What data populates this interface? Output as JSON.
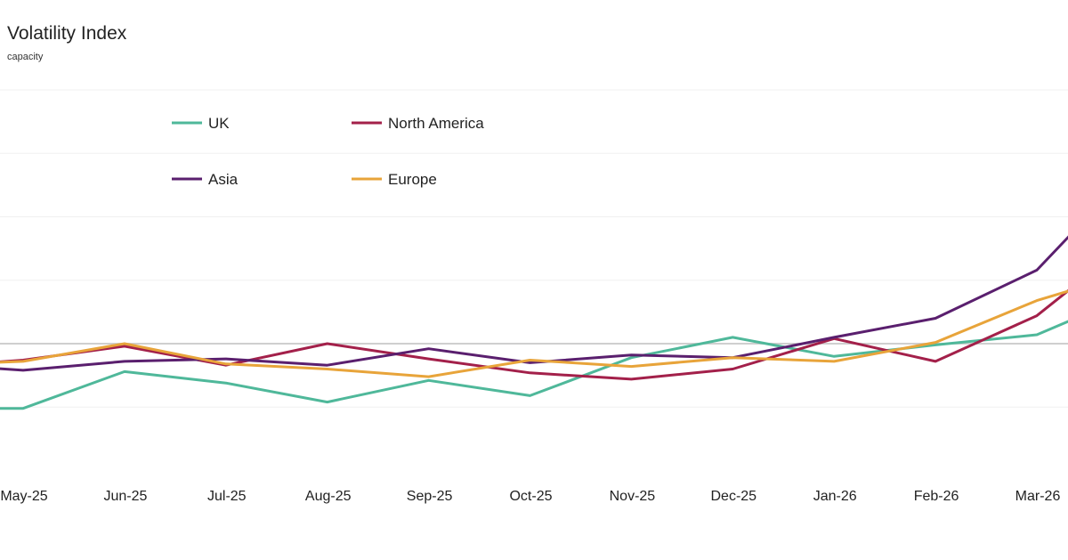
{
  "chart_data": {
    "type": "line",
    "title": "Volatility Index",
    "subtitle": "capacity",
    "categories": [
      "May-25",
      "Jun-25",
      "Jul-25",
      "Aug-25",
      "Sep-25",
      "Oct-25",
      "Nov-25",
      "Dec-25",
      "Jan-26",
      "Feb-26",
      "Mar-26"
    ],
    "series": [
      {
        "name": "UK",
        "color": "#4fb89a",
        "x": [
          -0.35,
          0,
          1,
          2,
          3,
          4,
          5,
          6,
          7,
          8,
          9,
          10,
          10.5
        ],
        "values": [
          -2.55,
          -2.55,
          -1.1,
          -1.55,
          -2.3,
          -1.45,
          -2.05,
          -0.55,
          0.25,
          -0.5,
          -0.05,
          0.35,
          1.2
        ]
      },
      {
        "name": "North America",
        "color": "#a3204a",
        "x": [
          -0.35,
          0,
          1,
          2,
          3,
          4,
          5,
          6,
          7,
          8,
          9,
          10,
          10.5
        ],
        "values": [
          -0.75,
          -0.65,
          -0.1,
          -0.85,
          0,
          -0.6,
          -1.15,
          -1.4,
          -1.0,
          0.2,
          -0.7,
          1.1,
          2.7
        ]
      },
      {
        "name": "Asia",
        "color": "#5a1f6e",
        "x": [
          -0.35,
          0,
          1,
          2,
          3,
          4,
          5,
          6,
          7,
          8,
          9,
          10,
          10.5
        ],
        "values": [
          -0.95,
          -1.05,
          -0.7,
          -0.6,
          -0.85,
          -0.2,
          -0.75,
          -0.45,
          -0.55,
          0.25,
          1.0,
          2.9,
          5.0
        ]
      },
      {
        "name": "Europe",
        "color": "#e8a43a",
        "x": [
          -0.35,
          0,
          1,
          2,
          3,
          4,
          5,
          6,
          7,
          8,
          9,
          10,
          10.5
        ],
        "values": [
          -0.75,
          -0.7,
          0,
          -0.8,
          -1.0,
          -1.3,
          -0.65,
          -0.9,
          -0.55,
          -0.7,
          0.05,
          1.7,
          2.3
        ]
      }
    ],
    "ylim": [
      -5,
      12
    ],
    "grid": true,
    "legend": "top-left"
  }
}
